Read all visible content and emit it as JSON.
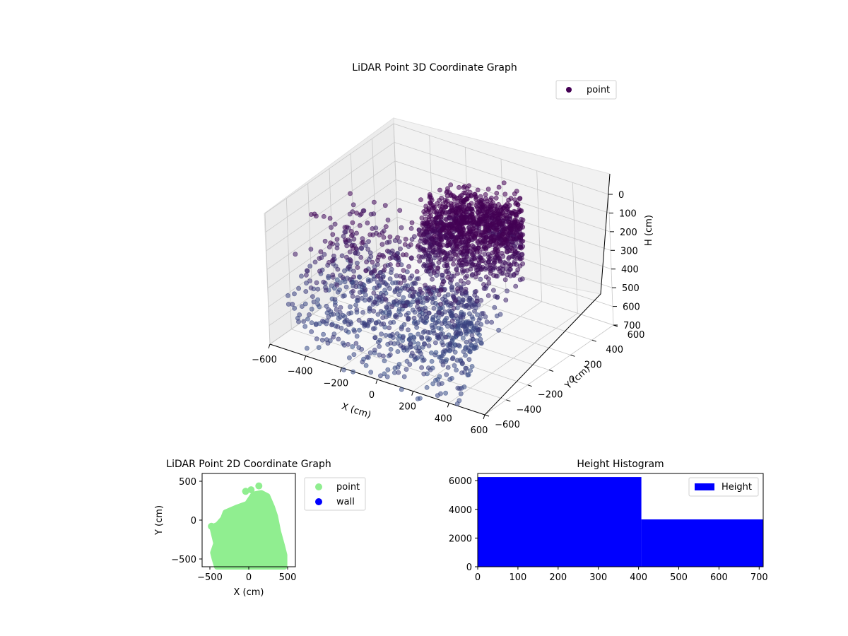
{
  "chart_data": [
    {
      "type": "scatter",
      "projection": "3d",
      "title": "LiDAR Point 3D Coordinate Graph",
      "xlabel": "X (cm)",
      "ylabel": "Y (cm)",
      "zlabel": "H (cm)",
      "xlim": [
        -600,
        600
      ],
      "ylim": [
        -600,
        600
      ],
      "zlim": [
        700,
        0
      ],
      "z_inverted": true,
      "xticks": [
        -600,
        -400,
        -200,
        0,
        200,
        400,
        600
      ],
      "yticks": [
        -600,
        -400,
        -200,
        0,
        200,
        400,
        600
      ],
      "zticks": [
        0,
        100,
        200,
        300,
        400,
        500,
        600,
        700
      ],
      "grid": true,
      "legend": {
        "position": "top-right",
        "entries": [
          "point"
        ]
      },
      "series": [
        {
          "name": "point",
          "color": "#440154",
          "color_far": "#3b528b",
          "description_of_structure": {
            "ceiling_disk": {
              "center": [
                150,
                150
              ],
              "radius": 300,
              "h_range": [
                0,
                150
              ]
            },
            "floor_fan": {
              "apex": [
                150,
                150
              ],
              "x_range": [
                -600,
                450
              ],
              "y_range": [
                -600,
                150
              ],
              "h_range": [
                500,
                700
              ]
            }
          }
        }
      ]
    },
    {
      "type": "scatter",
      "title": "LiDAR Point 2D Coordinate Graph",
      "xlabel": "X (cm)",
      "ylabel": "Y (cm)",
      "xlim": [
        -600,
        600
      ],
      "ylim": [
        -600,
        600
      ],
      "xticks": [
        -500,
        0,
        500
      ],
      "yticks": [
        -500,
        0,
        500
      ],
      "legend": {
        "position": "outside-right",
        "entries": [
          "point",
          "wall"
        ]
      },
      "series": [
        {
          "name": "point",
          "color": "#90ee90",
          "outline": [
            [
              -410,
              -600
            ],
            [
              -440,
              -500
            ],
            [
              -460,
              -420
            ],
            [
              -420,
              -300
            ],
            [
              -470,
              -90
            ],
            [
              -400,
              -60
            ],
            [
              -330,
              20
            ],
            [
              -300,
              100
            ],
            [
              -160,
              160
            ],
            [
              -20,
              210
            ],
            [
              60,
              330
            ],
            [
              160,
              350
            ],
            [
              240,
              310
            ],
            [
              300,
              170
            ],
            [
              340,
              50
            ],
            [
              380,
              -150
            ],
            [
              430,
              -330
            ],
            [
              460,
              -450
            ],
            [
              460,
              -600
            ]
          ],
          "outliers": [
            [
              -480,
              -80
            ],
            [
              -40,
              370
            ],
            [
              30,
              390
            ],
            [
              130,
              440
            ]
          ]
        },
        {
          "name": "wall",
          "color": "#0000ff",
          "points": []
        }
      ]
    },
    {
      "type": "histogram",
      "title": "Height Histogram",
      "xlim": [
        0,
        710
      ],
      "ylim": [
        0,
        6500
      ],
      "xticks": [
        0,
        100,
        200,
        300,
        400,
        500,
        600,
        700
      ],
      "yticks": [
        0,
        2000,
        4000,
        6000
      ],
      "legend": {
        "position": "top-right",
        "entries": [
          "Height"
        ]
      },
      "series": [
        {
          "name": "Height",
          "color": "#0000ff",
          "bins": [
            {
              "start": 0,
              "end": 407,
              "count": 6250
            },
            {
              "start": 407,
              "end": 710,
              "count": 3300
            }
          ]
        }
      ]
    }
  ]
}
